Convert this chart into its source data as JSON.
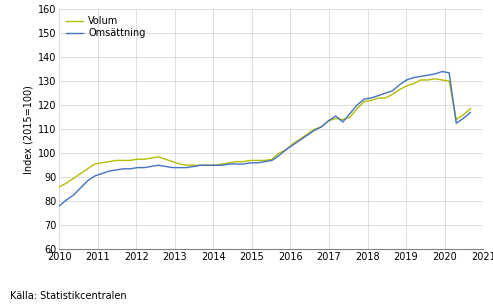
{
  "ylabel": "Index (2015=100)",
  "source": "Källa: Statistikcentralen",
  "legend": [
    "Omsättning",
    "Volum"
  ],
  "colors": [
    "#4472c4",
    "#b5bd00"
  ],
  "ylim": [
    60,
    160
  ],
  "yticks": [
    60,
    70,
    80,
    90,
    100,
    110,
    120,
    130,
    140,
    150,
    160
  ],
  "xlim_start": 2010.0,
  "xlim_end": 2021.0,
  "xtick_labels": [
    "2010",
    "2011",
    "2012",
    "2013",
    "2014",
    "2015",
    "2016",
    "2017",
    "2018",
    "2019",
    "2020",
    "2021"
  ],
  "omsattning": [
    78.0,
    80.5,
    82.5,
    85.5,
    88.5,
    90.5,
    91.5,
    92.5,
    93.0,
    93.5,
    93.5,
    94.0,
    94.0,
    94.5,
    95.0,
    94.5,
    94.0,
    94.0,
    94.0,
    94.5,
    95.0,
    95.0,
    95.0,
    95.0,
    95.5,
    95.5,
    95.5,
    96.0,
    96.0,
    96.5,
    97.0,
    99.0,
    101.5,
    103.5,
    105.5,
    107.5,
    109.5,
    111.0,
    113.5,
    115.5,
    113.0,
    116.5,
    120.0,
    122.5,
    123.0,
    124.0,
    125.0,
    126.0,
    128.5,
    130.5,
    131.5,
    132.0,
    132.5,
    133.0,
    134.0,
    133.5,
    112.5,
    114.5,
    117.0
  ],
  "volum": [
    86.0,
    87.5,
    89.5,
    91.5,
    93.5,
    95.5,
    96.0,
    96.5,
    97.0,
    97.0,
    97.0,
    97.5,
    97.5,
    98.0,
    98.5,
    97.5,
    96.5,
    95.5,
    95.0,
    95.0,
    95.0,
    95.0,
    95.0,
    95.5,
    96.0,
    96.5,
    96.5,
    97.0,
    97.0,
    97.0,
    97.5,
    100.0,
    101.5,
    104.0,
    106.0,
    108.0,
    110.0,
    111.0,
    113.5,
    114.5,
    114.0,
    115.0,
    118.5,
    121.5,
    122.0,
    123.0,
    123.0,
    124.5,
    126.5,
    128.0,
    129.0,
    130.5,
    130.5,
    131.0,
    130.5,
    130.0,
    114.0,
    116.0,
    118.5
  ],
  "n_points": 59,
  "x_end": 2020.67
}
